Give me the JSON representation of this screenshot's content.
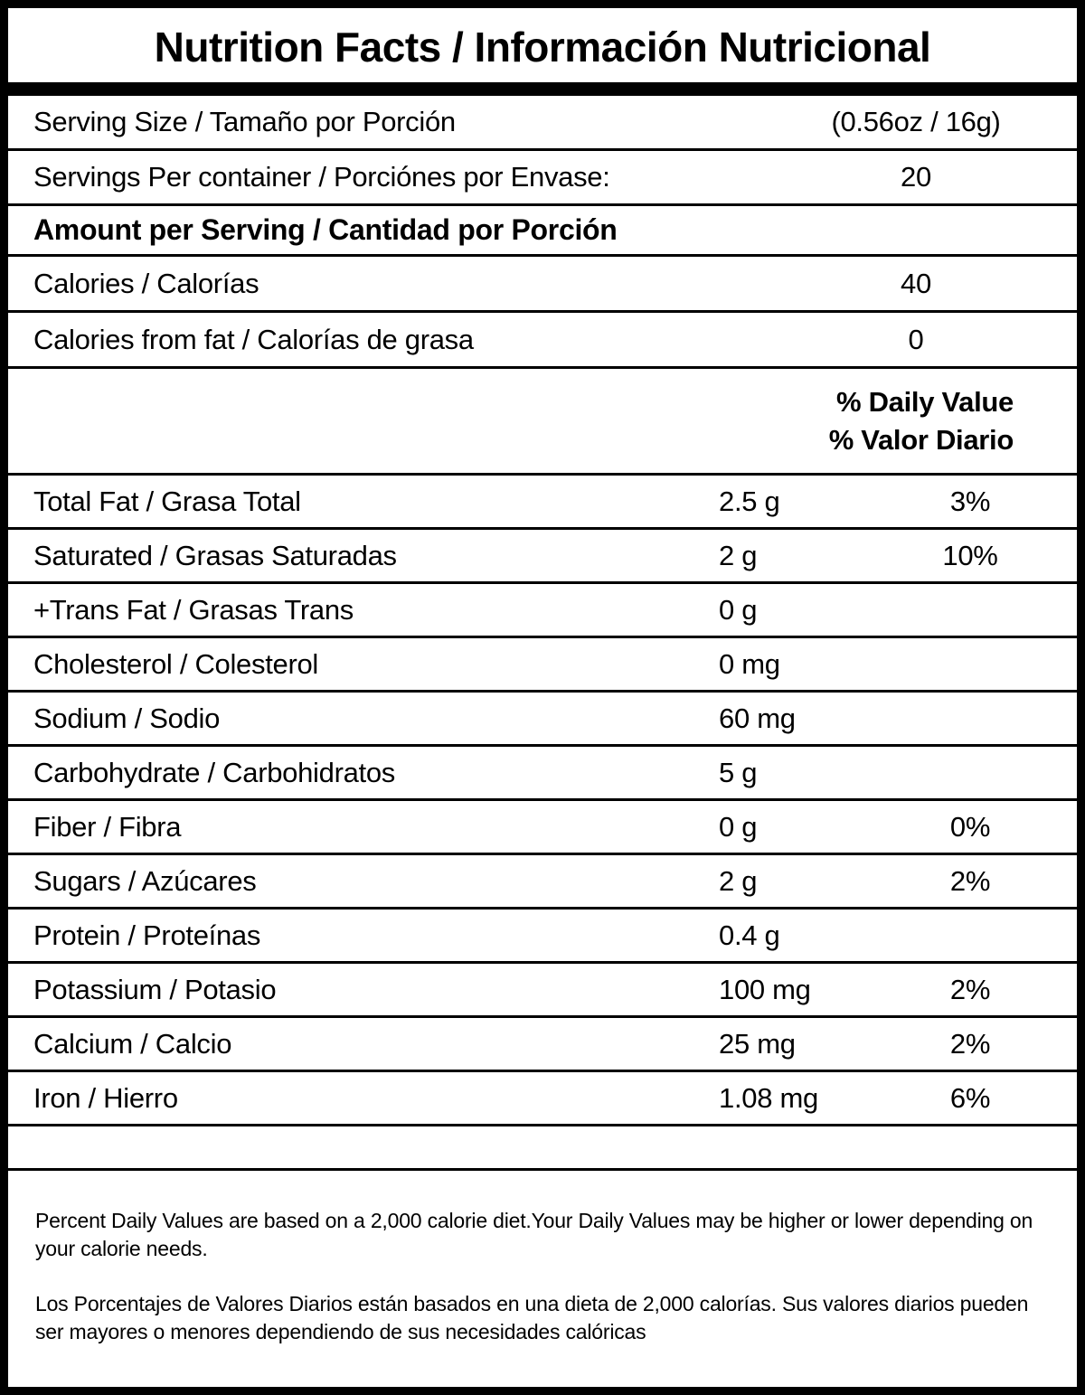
{
  "title": "Nutrition Facts / Información Nutricional",
  "header_rows": [
    {
      "label": "Serving Size / Tamaño por Porción",
      "value": "(0.56oz / 16g)"
    },
    {
      "label": "Servings Per container / Porciónes por Envase:",
      "value": "20"
    }
  ],
  "amount_per_serving": "Amount per Serving / Cantidad por Porción",
  "calorie_rows": [
    {
      "label": "Calories / Calorías",
      "value": "40"
    },
    {
      "label": "Calories from fat / Calorías de grasa",
      "value": "0"
    }
  ],
  "daily_value_header": {
    "line1": "% Daily Value",
    "line2": "% Valor Diario"
  },
  "nutrients": [
    {
      "label": "Total Fat / Grasa Total",
      "amount": "2.5 g",
      "dv": "3%"
    },
    {
      "label": "Saturated / Grasas Saturadas",
      "amount": "2 g",
      "dv": "10%"
    },
    {
      "label": "+Trans Fat / Grasas Trans",
      "amount": "0 g",
      "dv": ""
    },
    {
      "label": "Cholesterol / Colesterol",
      "amount": "0 mg",
      "dv": ""
    },
    {
      "label": "Sodium / Sodio",
      "amount": "60 mg",
      "dv": ""
    },
    {
      "label": "Carbohydrate / Carbohidratos",
      "amount": "5 g",
      "dv": ""
    },
    {
      "label": "Fiber / Fibra",
      "amount": "0 g",
      "dv": "0%"
    },
    {
      "label": "Sugars / Azúcares",
      "amount": "2 g",
      "dv": "2%"
    },
    {
      "label": "Protein / Proteínas",
      "amount": "0.4 g",
      "dv": ""
    },
    {
      "label": "Potassium / Potasio",
      "amount": "100 mg",
      "dv": "2%"
    },
    {
      "label": "Calcium / Calcio",
      "amount": "25 mg",
      "dv": "2%"
    },
    {
      "label": "Iron / Hierro",
      "amount": "1.08 mg",
      "dv": "6%"
    }
  ],
  "footnotes": {
    "english": "Percent Daily Values are based on a 2,000 calorie diet.Your Daily Values may be higher or lower depending on your calorie needs.",
    "spanish": "Los Porcentajes de Valores Diarios están basados en una dieta de 2,000 calorías. Sus valores diarios pueden ser mayores o menores dependiendo de sus necesidades calóricas"
  }
}
